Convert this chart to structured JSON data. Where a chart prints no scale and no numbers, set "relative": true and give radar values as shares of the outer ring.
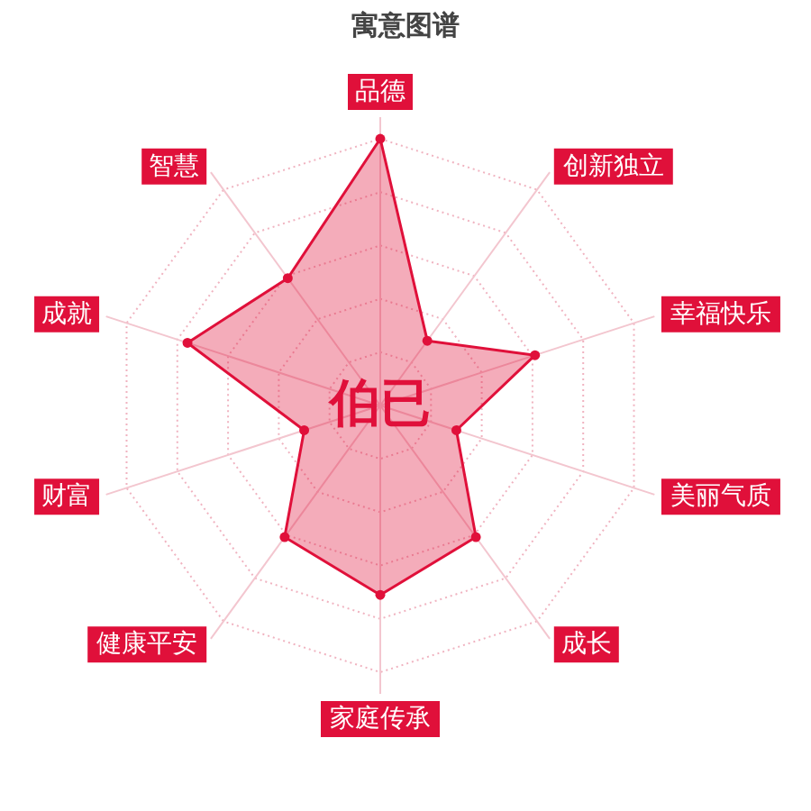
{
  "chart_data": {
    "type": "radar",
    "title": "寓意图谱",
    "categories": [
      "品德",
      "创新独立",
      "幸福快乐",
      "美丽气质",
      "成长",
      "家庭传承",
      "健康平安",
      "财富",
      "成就",
      "智慧"
    ],
    "series": [
      {
        "color": "#e0103a",
        "values": [
          1,
          0.3,
          0.61,
          0.3,
          0.61,
          0.71,
          0.61,
          0.3,
          0.76,
          0.59
        ]
      }
    ],
    "relative": true,
    "grid": true,
    "marker": "circle",
    "annotations": [
      "伯已"
    ]
  }
}
